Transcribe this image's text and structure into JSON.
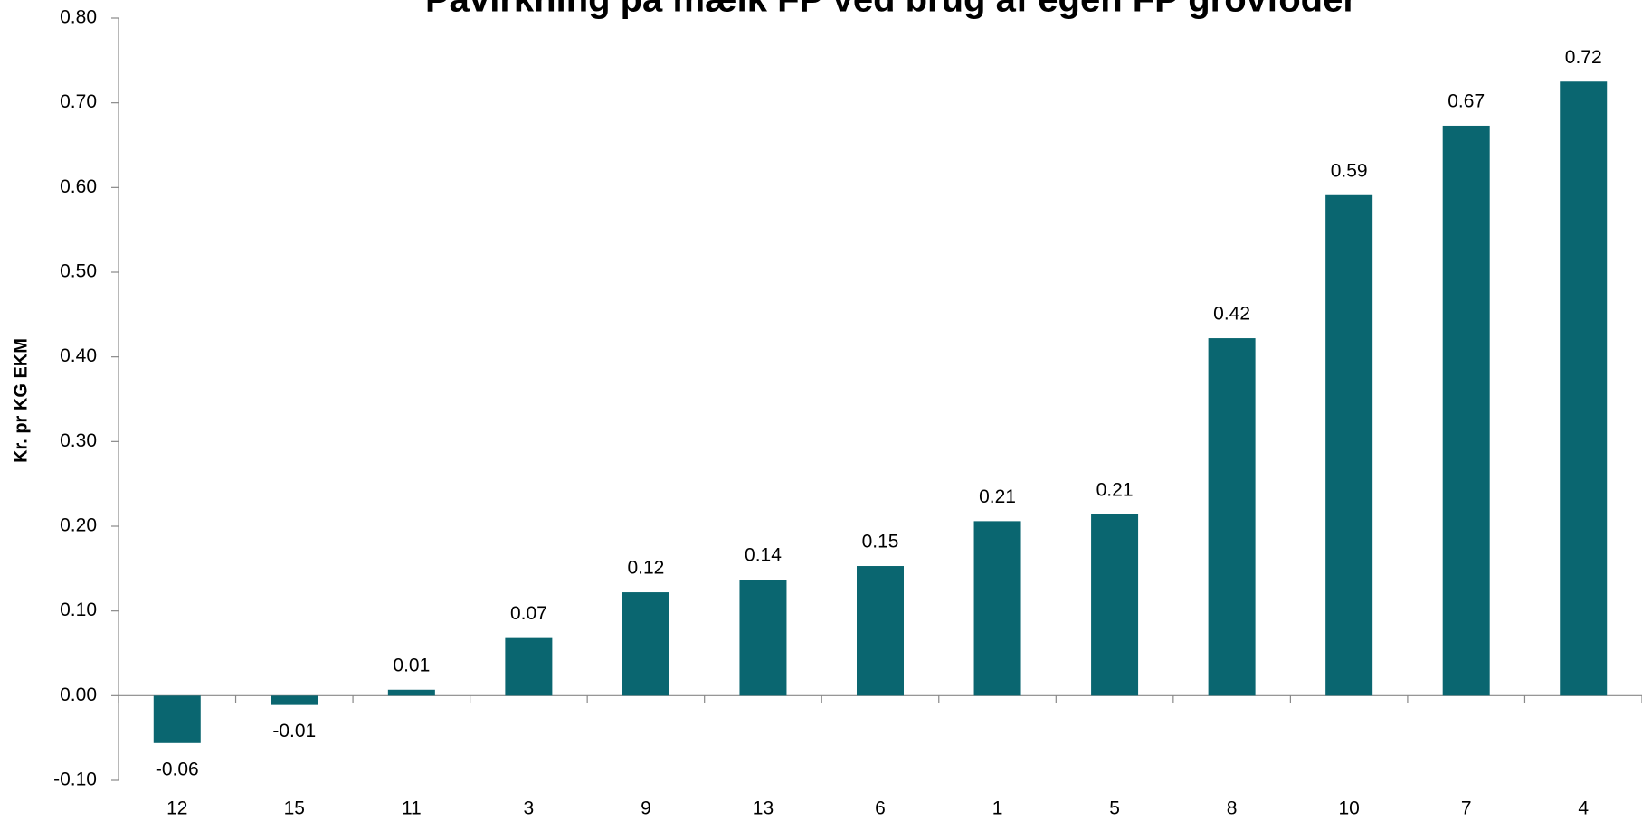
{
  "chart_data": {
    "type": "bar",
    "title": "Påvirkning på mælk FP ved brug af egen FP grovfoder",
    "y_label": "Kr. pr KG EKM",
    "categories": [
      "12",
      "15",
      "11",
      "3",
      "9",
      "13",
      "6",
      "1",
      "5",
      "8",
      "10",
      "7",
      "4"
    ],
    "values": [
      -0.056,
      -0.011,
      0.007,
      0.068,
      0.122,
      0.137,
      0.153,
      0.206,
      0.214,
      0.422,
      0.591,
      0.673,
      0.725
    ],
    "value_labels": [
      "-0.06",
      "-0.01",
      "0.01",
      "0.07",
      "0.12",
      "0.14",
      "0.15",
      "0.21",
      "0.21",
      "0.42",
      "0.59",
      "0.67",
      "0.72"
    ],
    "color": "#0a6670",
    "ylim": [
      -0.1,
      0.8
    ],
    "yticks": [
      {
        "value": -0.1,
        "label": "-0.10"
      },
      {
        "value": 0,
        "label": "0.00"
      },
      {
        "value": 0.1,
        "label": "0.10"
      },
      {
        "value": 0.2,
        "label": "0.20"
      },
      {
        "value": 0.3,
        "label": "0.30"
      },
      {
        "value": 0.4,
        "label": "0.40"
      },
      {
        "value": 0.5,
        "label": "0.50"
      },
      {
        "value": 0.6,
        "label": "0.60"
      },
      {
        "value": 0.7,
        "label": "0.70"
      },
      {
        "value": 0.8,
        "label": "0.80"
      }
    ],
    "grid": false
  }
}
